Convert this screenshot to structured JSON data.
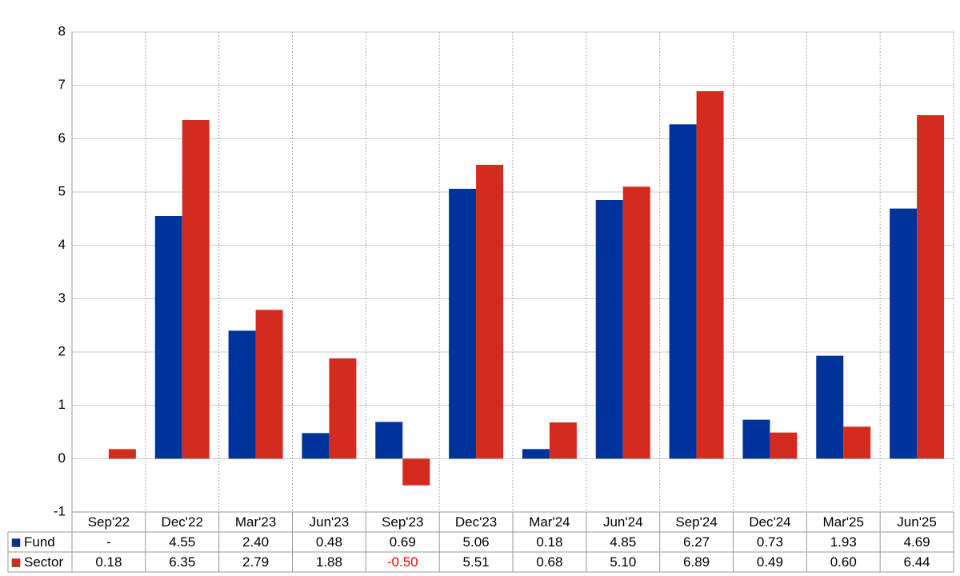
{
  "chart_data": {
    "type": "bar",
    "categories": [
      "Sep'22",
      "Dec'22",
      "Mar'23",
      "Jun'23",
      "Sep'23",
      "Dec'23",
      "Mar'24",
      "Jun'24",
      "Sep'24",
      "Dec'24",
      "Mar'25",
      "Jun'25"
    ],
    "series": [
      {
        "name": "Fund",
        "color": "#003399",
        "values": [
          null,
          4.55,
          2.4,
          0.48,
          0.69,
          5.06,
          0.18,
          4.85,
          6.27,
          0.73,
          1.93,
          4.69
        ],
        "value_labels": [
          "-",
          "4.55",
          "2.40",
          "0.48",
          "0.69",
          "5.06",
          "0.18",
          "4.85",
          "6.27",
          "0.73",
          "1.93",
          "4.69"
        ]
      },
      {
        "name": "Sector",
        "color": "#d52b1e",
        "values": [
          0.18,
          6.35,
          2.79,
          1.88,
          -0.5,
          5.51,
          0.68,
          5.1,
          6.89,
          0.49,
          0.6,
          6.44
        ],
        "value_labels": [
          "0.18",
          "6.35",
          "2.79",
          "1.88",
          "-0.50",
          "5.51",
          "0.68",
          "5.10",
          "6.89",
          "0.49",
          "0.60",
          "6.44"
        ]
      }
    ],
    "ylim": [
      -1,
      8
    ],
    "yticks": [
      -1,
      0,
      1,
      2,
      3,
      4,
      5,
      6,
      7,
      8
    ],
    "grid": true,
    "negative_label_color": "#ff0000"
  }
}
